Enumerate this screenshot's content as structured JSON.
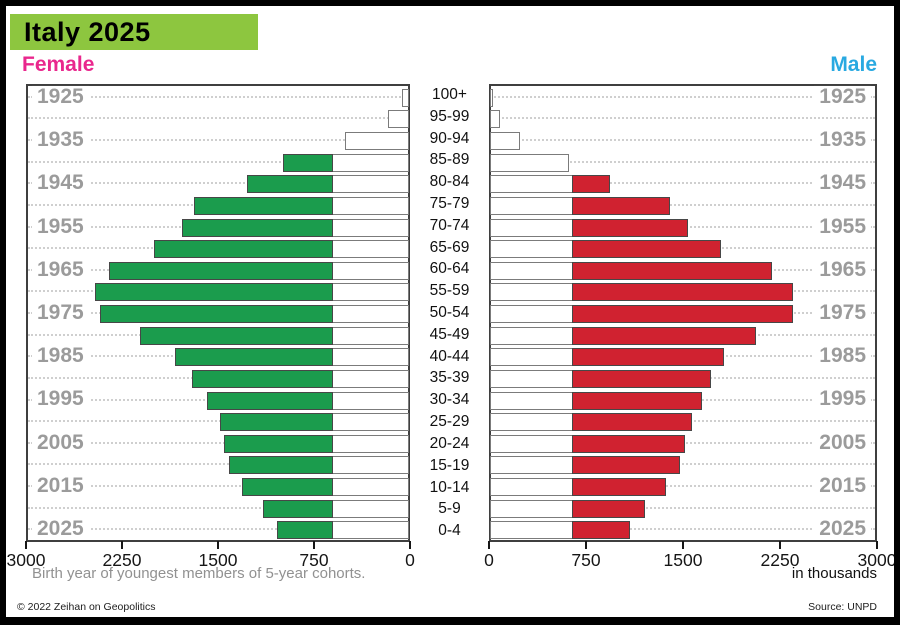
{
  "title": "Italy 2025",
  "header": {
    "female_label": "Female",
    "male_label": "Male"
  },
  "footer": {
    "caption": "Birth year of youngest members of 5-year cohorts.",
    "unit": "in thousands",
    "copyright": "© 2022 Zeihan on Geopolitics",
    "source": "Source: UNPD"
  },
  "colors": {
    "title_bg": "#8dc63f",
    "female_text": "#e9278d",
    "male_text": "#29a9e1",
    "bar_green": "#1b9c4d",
    "bar_red": "#d02230",
    "year_label_gray": "#9b9b9b"
  },
  "chart_data": {
    "type": "bar",
    "subtype": "population-pyramid",
    "title": "Italy 2025",
    "unit": "thousands",
    "xlim": [
      0,
      3000
    ],
    "grid": "dotted-horizontal",
    "age_groups": [
      "100+",
      "95-99",
      "90-94",
      "85-89",
      "80-84",
      "75-79",
      "70-74",
      "65-69",
      "60-64",
      "55-59",
      "50-54",
      "45-49",
      "40-44",
      "35-39",
      "30-34",
      "25-29",
      "20-24",
      "15-19",
      "10-14",
      "5-9",
      "0-4"
    ],
    "birth_year_labels": [
      "1925",
      "1935",
      "1945",
      "1955",
      "1965",
      "1975",
      "1985",
      "1995",
      "2005",
      "2015",
      "2025"
    ],
    "axis_ticks_left": [
      "3000",
      "2250",
      "1500",
      "750",
      "0"
    ],
    "axis_ticks_right": [
      "0",
      "750",
      "1500",
      "2250",
      "3000"
    ],
    "white_band": {
      "female": 605,
      "male": 650
    },
    "series": [
      {
        "name": "Female",
        "color": "#1b9c4d",
        "values": [
          40,
          150,
          490,
          980,
          1260,
          1680,
          1775,
          2000,
          2355,
          2465,
          2425,
          2110,
          1830,
          1695,
          1580,
          1475,
          1445,
          1405,
          1305,
          1140,
          1030
        ]
      },
      {
        "name": "Male",
        "color": "#d02230",
        "values": [
          10,
          60,
          220,
          600,
          925,
          1390,
          1535,
          1790,
          2190,
          2350,
          2350,
          2065,
          1810,
          1710,
          1640,
          1560,
          1505,
          1465,
          1360,
          1195,
          1080
        ]
      }
    ]
  }
}
